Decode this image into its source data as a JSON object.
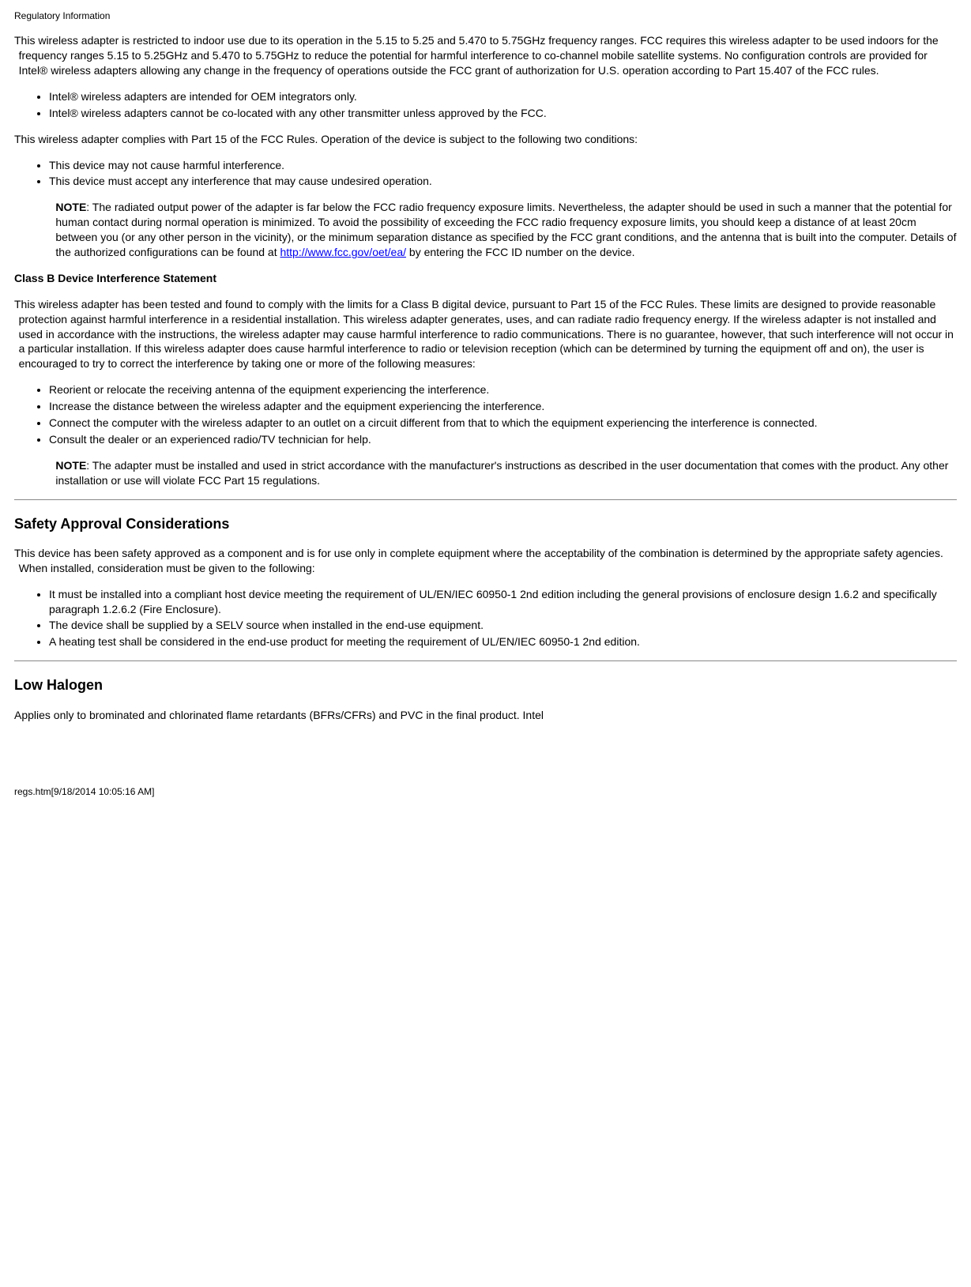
{
  "header": "Regulatory Information",
  "para1": "This wireless adapter is restricted to indoor use due to its operation in the 5.15 to 5.25 and 5.470 to 5.75GHz frequency ranges. FCC requires this wireless adapter to be used indoors for the frequency ranges 5.15 to 5.25GHz and 5.470 to 5.75GHz to reduce the potential for harmful interference to co-channel mobile satellite systems. No configuration controls are provided for Intel® wireless adapters allowing any change in the frequency of operations outside the FCC grant of authorization for U.S. operation according to Part 15.407 of the FCC rules.",
  "list1": [
    "Intel® wireless adapters are intended for OEM integrators only.",
    "Intel® wireless adapters cannot be co-located with any other transmitter unless approved by the FCC."
  ],
  "para2": "This wireless adapter complies with Part 15 of the FCC Rules. Operation of the device is subject to the following two conditions:",
  "list2": [
    "This device may not cause harmful interference.",
    "This device must accept any interference that may cause undesired operation."
  ],
  "note1_label": "NOTE",
  "note1_before": ": The radiated output power of the adapter is far below the FCC radio frequency exposure limits. Nevertheless, the adapter should be used in such a manner that the potential for human contact during normal operation is minimized. To avoid the possibility of exceeding the FCC radio frequency exposure limits, you should keep a distance of at least 20cm between you (or any other person in the vicinity), or the minimum separation distance as specified by the FCC grant conditions, and the antenna that is built into the computer. Details of the authorized configurations can be found at ",
  "note1_link_text": "http://www.fcc.gov/oet/ea/",
  "note1_link_href": "http://www.fcc.gov/oet/ea/",
  "note1_after": " by entering the FCC ID number on the device.",
  "classb_heading": "Class B Device Interference Statement",
  "para3": "This wireless adapter has been tested and found to comply with the limits for a Class B digital device, pursuant to Part 15 of the FCC Rules. These limits are designed to provide reasonable protection against harmful interference in a residential installation. This wireless adapter generates, uses, and can radiate radio frequency energy. If the wireless adapter is not installed and used in accordance with the instructions, the wireless adapter may cause harmful interference to radio communications. There is no guarantee, however, that such interference will not occur in a particular installation. If this wireless adapter does cause harmful interference to radio or television reception (which can be determined by turning the equipment off and on), the user is encouraged to try to correct the interference by taking one or more of the following measures:",
  "list3": [
    "Reorient or relocate the receiving antenna of the equipment experiencing the interference.",
    "Increase the distance between the wireless adapter and the equipment experiencing the interference.",
    "Connect the computer with the wireless adapter to an outlet on a circuit different from that to which the equipment experiencing the interference is connected.",
    "Consult the dealer or an experienced radio/TV technician for help."
  ],
  "note2_label": "NOTE",
  "note2_text": ": The adapter must be installed and used in strict accordance with the manufacturer's instructions as described in the user documentation that comes with the product. Any other installation or use will violate FCC Part 15 regulations.",
  "safety_heading": "Safety Approval Considerations",
  "para4": "This device has been safety approved as a component and is for use only in complete equipment where the acceptability of the combination is determined by the appropriate safety agencies. When installed, consideration must be given to the following:",
  "list4": [
    "It must be installed into a compliant host device meeting the requirement of UL/EN/IEC 60950-1 2nd edition including the general provisions of enclosure design 1.6.2 and specifically paragraph 1.2.6.2 (Fire Enclosure).",
    "The device shall be supplied by a SELV source when installed in the end-use equipment.",
    "A heating test shall be considered in the end-use product for meeting the requirement of UL/EN/IEC 60950-1 2nd edition."
  ],
  "lowhalogen_heading": "Low Halogen",
  "para5": "Applies only to brominated and chlorinated flame retardants (BFRs/CFRs) and PVC in the final product. Intel",
  "footer": "regs.htm[9/18/2014 10:05:16 AM]"
}
